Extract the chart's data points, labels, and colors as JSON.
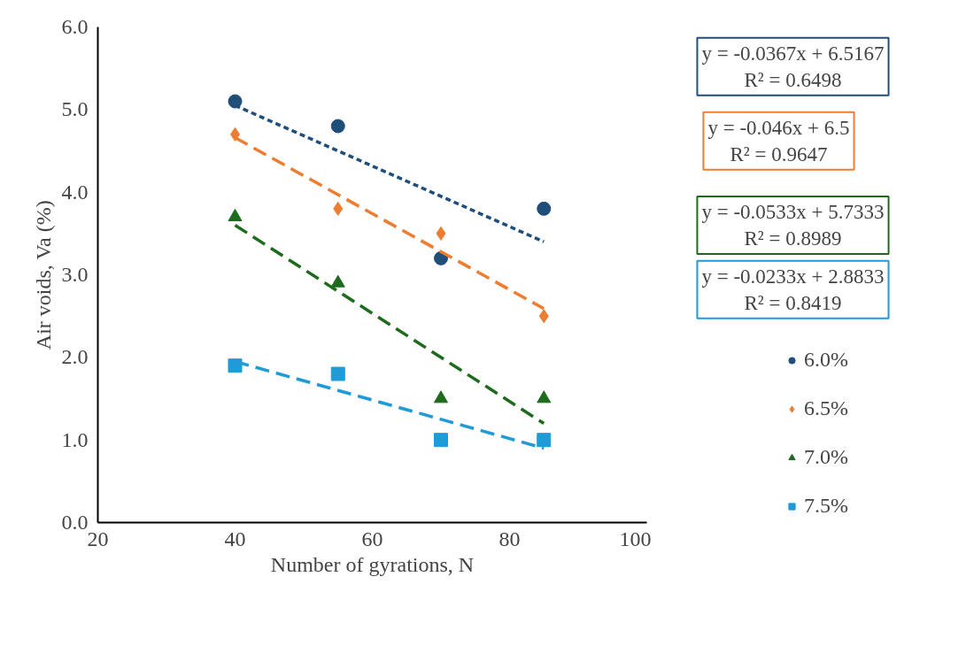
{
  "chart_data": {
    "type": "scatter",
    "xlabel": "Number of gyrations, N",
    "ylabel": "Air voids, Va (%)",
    "xlim": [
      20,
      100
    ],
    "xticks": [
      20,
      40,
      60,
      80,
      100
    ],
    "ylim": [
      0,
      6
    ],
    "yticks": [
      {
        "value": 0,
        "label": "0.0"
      },
      {
        "value": 1,
        "label": "1.0"
      },
      {
        "value": 2,
        "label": "2.0"
      },
      {
        "value": 3,
        "label": "3.0"
      },
      {
        "value": 4,
        "label": "4.0"
      },
      {
        "value": 5,
        "label": "5.0"
      },
      {
        "value": 6,
        "label": "6.0"
      }
    ],
    "grid": false,
    "legend": "right",
    "series": [
      {
        "name": "6.0%",
        "marker": "circle",
        "color": "#1f4e79",
        "x": [
          40,
          55,
          70,
          85
        ],
        "values": [
          5.1,
          4.8,
          3.2,
          3.8
        ]
      },
      {
        "name": "6.5%",
        "marker": "diamond",
        "color": "#ed7d31",
        "x": [
          40,
          55,
          70,
          85
        ],
        "values": [
          4.7,
          3.8,
          3.5,
          2.5
        ]
      },
      {
        "name": "7.0%",
        "marker": "triangle",
        "color": "#1e6b1e",
        "x": [
          40,
          55,
          70,
          85
        ],
        "values": [
          3.7,
          2.9,
          1.5,
          1.5
        ]
      },
      {
        "name": "7.5%",
        "marker": "square",
        "color": "#1f9bd7",
        "x": [
          40,
          55,
          70,
          85
        ],
        "values": [
          1.9,
          1.8,
          1.0,
          1.0
        ]
      },
      {
        "type": "line",
        "line_style": "dotted",
        "color": "#1f4e79",
        "x": [
          40,
          85
        ],
        "values": [
          5.05,
          3.4
        ]
      },
      {
        "type": "line",
        "line_style": "dashed",
        "color": "#ed7d31",
        "x": [
          40,
          85
        ],
        "values": [
          4.66,
          2.59
        ]
      },
      {
        "type": "line",
        "line_style": "dashed",
        "color": "#1e6b1e",
        "x": [
          40,
          85
        ],
        "values": [
          3.6,
          1.2
        ]
      },
      {
        "type": "line",
        "line_style": "dashed",
        "color": "#1f9bd7",
        "x": [
          40,
          85
        ],
        "values": [
          1.95,
          0.9
        ]
      }
    ],
    "annotations": [
      "y = -0.0367x + 6.5167\nR² = 0.6498",
      "y = -0.046x + 6.5\nR² = 0.9647",
      "y = -0.0533x + 5.7333\nR² = 0.8989",
      "y = -0.0233x + 2.8833\nR² = 0.8419"
    ]
  }
}
